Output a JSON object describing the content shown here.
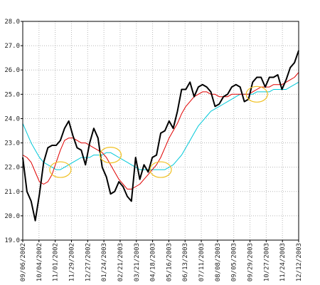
{
  "chart_data": {
    "type": "line",
    "title": "",
    "xlabel": "",
    "ylabel": "",
    "ylim": [
      19.0,
      28.0
    ],
    "y_ticks": [
      19.0,
      20.0,
      21.0,
      22.0,
      23.0,
      24.0,
      25.0,
      26.0,
      27.0,
      28.0
    ],
    "y_tick_labels": [
      "19.0",
      "20.0",
      "21.0",
      "22.0",
      "23.0",
      "24.0",
      "25.0",
      "26.0",
      "27.0",
      "28.0"
    ],
    "x_tick_labels": [
      "09/06/2002",
      "10/04/2002",
      "11/01/2002",
      "11/29/2002",
      "12/27/2002",
      "01/24/2003",
      "02/21/2003",
      "03/21/2003",
      "04/18/2003",
      "05/16/2003",
      "06/13/2003",
      "07/11/2003",
      "08/08/2003",
      "09/05/2003",
      "09/29/2003",
      "10/27/2003",
      "11/24/2003",
      "12/12/2003"
    ],
    "grid": true,
    "series": [
      {
        "color": "#000000",
        "values": [
          22.4,
          21.0,
          20.6,
          19.8,
          20.9,
          22.2,
          22.8,
          22.9,
          22.9,
          23.1,
          23.6,
          23.9,
          23.3,
          22.8,
          22.7,
          22.1,
          23.0,
          23.6,
          23.2,
          22.0,
          21.6,
          20.9,
          21.0,
          21.4,
          21.2,
          20.8,
          20.6,
          22.4,
          21.5,
          22.1,
          21.8,
          22.4,
          22.5,
          23.4,
          23.5,
          23.9,
          23.6,
          24.3,
          25.2,
          25.2,
          25.5,
          24.9,
          25.3,
          25.4,
          25.3,
          25.1,
          24.5,
          24.6,
          24.9,
          25.0,
          25.3,
          25.4,
          25.3,
          24.7,
          24.8,
          25.5,
          25.7,
          25.7,
          25.3,
          25.7,
          25.7,
          25.8,
          25.2,
          25.6,
          26.1,
          26.3,
          26.8
        ]
      },
      {
        "color": "#e00000",
        "values": [
          22.5,
          22.4,
          22.2,
          21.8,
          21.4,
          21.3,
          21.4,
          21.7,
          22.2,
          22.7,
          23.1,
          23.2,
          23.2,
          23.1,
          23.0,
          23.0,
          22.9,
          22.8,
          22.7,
          22.6,
          22.4,
          22.1,
          21.8,
          21.5,
          21.3,
          21.1,
          21.1,
          21.2,
          21.3,
          21.5,
          21.7,
          21.9,
          22.1,
          22.4,
          22.8,
          23.2,
          23.5,
          23.8,
          24.2,
          24.5,
          24.7,
          24.9,
          25.0,
          25.1,
          25.1,
          25.0,
          25.0,
          24.9,
          24.9,
          24.9,
          25.0,
          25.0,
          25.0,
          25.0,
          25.0,
          25.1,
          25.2,
          25.3,
          25.3,
          25.3,
          25.4,
          25.4,
          25.4,
          25.5,
          25.6,
          25.7,
          25.9
        ]
      },
      {
        "color": "#00c8d8",
        "values": [
          23.8,
          23.4,
          23.0,
          22.7,
          22.4,
          22.2,
          22.1,
          22.0,
          21.9,
          21.9,
          22.0,
          22.1,
          22.2,
          22.3,
          22.4,
          22.4,
          22.4,
          22.5,
          22.5,
          22.5,
          22.6,
          22.6,
          22.5,
          22.4,
          22.3,
          22.2,
          22.1,
          22.0,
          21.9,
          21.9,
          21.9,
          21.9,
          21.9,
          21.9,
          21.9,
          22.0,
          22.1,
          22.3,
          22.5,
          22.8,
          23.1,
          23.4,
          23.7,
          23.9,
          24.1,
          24.3,
          24.4,
          24.5,
          24.6,
          24.7,
          24.8,
          24.9,
          25.0,
          25.0,
          25.0,
          25.0,
          25.1,
          25.1,
          25.1,
          25.1,
          25.2,
          25.2,
          25.2,
          25.2,
          25.3,
          25.4,
          25.5
        ]
      }
    ],
    "annotations": [
      {
        "type": "ellipse",
        "color": "#f0c020",
        "x_index": 9,
        "y": 21.9
      },
      {
        "type": "ellipse",
        "color": "#f0c020",
        "x_index": 21,
        "y": 22.5
      },
      {
        "type": "ellipse",
        "color": "#f0c020",
        "x_index": 33,
        "y": 21.9
      },
      {
        "type": "ellipse",
        "color": "#f0c020",
        "x_index": 56,
        "y": 25.0
      }
    ]
  }
}
